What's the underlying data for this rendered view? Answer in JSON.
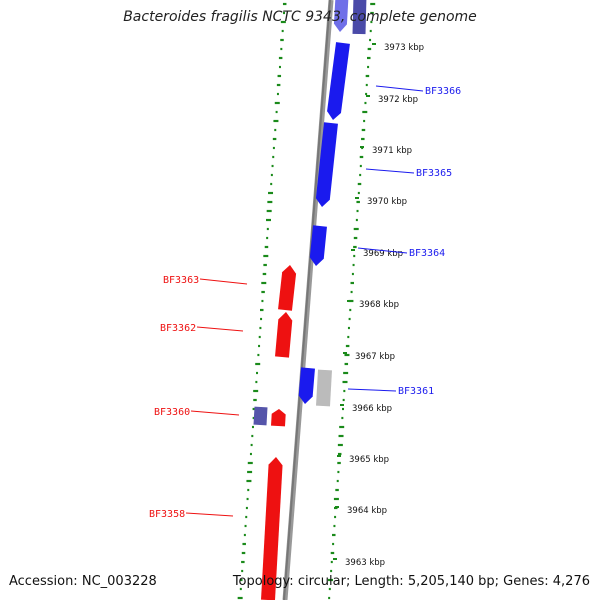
{
  "title": "Bacteroides fragilis NCTC 9343, complete genome",
  "footer": {
    "accession_label": "Accession:",
    "accession": "NC_003228",
    "topology_label": "Topology:",
    "topology": "circular",
    "length_label": "Length:",
    "length": "5,205,140 bp",
    "genes_label": "Genes:",
    "genes": "4,276"
  },
  "colors": {
    "forward_strand": "#1a1aee",
    "reverse_strand": "#ee1111",
    "backbone": "#888888",
    "gc_ticks": "#1a8a1a",
    "other_feature": "#5555aa",
    "pseudo_feature": "#bbbbbb"
  },
  "kbp_ticks": [
    "3973 kbp",
    "3972 kbp",
    "3971 kbp",
    "3970 kbp",
    "3969 kbp",
    "3968 kbp",
    "3967 kbp",
    "3966 kbp",
    "3965 kbp",
    "3964 kbp",
    "3963 kbp"
  ],
  "genes_forward": [
    {
      "name": "BF3366",
      "color": "#1a1aee"
    },
    {
      "name": "BF3365",
      "color": "#1a1aee"
    },
    {
      "name": "BF3364",
      "color": "#1a1aee"
    },
    {
      "name": "BF3361",
      "color": "#1a1aee"
    }
  ],
  "genes_reverse": [
    {
      "name": "BF3363",
      "color": "#ee1111"
    },
    {
      "name": "BF3362",
      "color": "#ee1111"
    },
    {
      "name": "BF3360",
      "color": "#ee1111"
    },
    {
      "name": "BF3358",
      "color": "#ee1111"
    }
  ]
}
